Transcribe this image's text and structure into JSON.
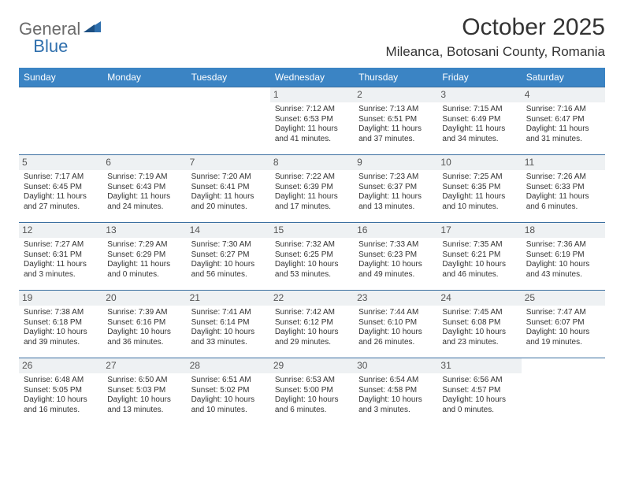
{
  "logo": {
    "part1": "General",
    "part2": "Blue"
  },
  "title": "October 2025",
  "location": "Mileanca, Botosani County, Romania",
  "colors": {
    "header_bg": "#3b84c4",
    "header_text": "#ffffff",
    "row_border": "#3b6fa0",
    "daynum_bg": "#eef1f3",
    "logo_gray": "#6b6b6b",
    "logo_blue": "#2f6fad"
  },
  "day_headers": [
    "Sunday",
    "Monday",
    "Tuesday",
    "Wednesday",
    "Thursday",
    "Friday",
    "Saturday"
  ],
  "weeks": [
    [
      {
        "n": "",
        "sr": "",
        "ss": "",
        "dl": ""
      },
      {
        "n": "",
        "sr": "",
        "ss": "",
        "dl": ""
      },
      {
        "n": "",
        "sr": "",
        "ss": "",
        "dl": ""
      },
      {
        "n": "1",
        "sr": "Sunrise: 7:12 AM",
        "ss": "Sunset: 6:53 PM",
        "dl": "Daylight: 11 hours and 41 minutes."
      },
      {
        "n": "2",
        "sr": "Sunrise: 7:13 AM",
        "ss": "Sunset: 6:51 PM",
        "dl": "Daylight: 11 hours and 37 minutes."
      },
      {
        "n": "3",
        "sr": "Sunrise: 7:15 AM",
        "ss": "Sunset: 6:49 PM",
        "dl": "Daylight: 11 hours and 34 minutes."
      },
      {
        "n": "4",
        "sr": "Sunrise: 7:16 AM",
        "ss": "Sunset: 6:47 PM",
        "dl": "Daylight: 11 hours and 31 minutes."
      }
    ],
    [
      {
        "n": "5",
        "sr": "Sunrise: 7:17 AM",
        "ss": "Sunset: 6:45 PM",
        "dl": "Daylight: 11 hours and 27 minutes."
      },
      {
        "n": "6",
        "sr": "Sunrise: 7:19 AM",
        "ss": "Sunset: 6:43 PM",
        "dl": "Daylight: 11 hours and 24 minutes."
      },
      {
        "n": "7",
        "sr": "Sunrise: 7:20 AM",
        "ss": "Sunset: 6:41 PM",
        "dl": "Daylight: 11 hours and 20 minutes."
      },
      {
        "n": "8",
        "sr": "Sunrise: 7:22 AM",
        "ss": "Sunset: 6:39 PM",
        "dl": "Daylight: 11 hours and 17 minutes."
      },
      {
        "n": "9",
        "sr": "Sunrise: 7:23 AM",
        "ss": "Sunset: 6:37 PM",
        "dl": "Daylight: 11 hours and 13 minutes."
      },
      {
        "n": "10",
        "sr": "Sunrise: 7:25 AM",
        "ss": "Sunset: 6:35 PM",
        "dl": "Daylight: 11 hours and 10 minutes."
      },
      {
        "n": "11",
        "sr": "Sunrise: 7:26 AM",
        "ss": "Sunset: 6:33 PM",
        "dl": "Daylight: 11 hours and 6 minutes."
      }
    ],
    [
      {
        "n": "12",
        "sr": "Sunrise: 7:27 AM",
        "ss": "Sunset: 6:31 PM",
        "dl": "Daylight: 11 hours and 3 minutes."
      },
      {
        "n": "13",
        "sr": "Sunrise: 7:29 AM",
        "ss": "Sunset: 6:29 PM",
        "dl": "Daylight: 11 hours and 0 minutes."
      },
      {
        "n": "14",
        "sr": "Sunrise: 7:30 AM",
        "ss": "Sunset: 6:27 PM",
        "dl": "Daylight: 10 hours and 56 minutes."
      },
      {
        "n": "15",
        "sr": "Sunrise: 7:32 AM",
        "ss": "Sunset: 6:25 PM",
        "dl": "Daylight: 10 hours and 53 minutes."
      },
      {
        "n": "16",
        "sr": "Sunrise: 7:33 AM",
        "ss": "Sunset: 6:23 PM",
        "dl": "Daylight: 10 hours and 49 minutes."
      },
      {
        "n": "17",
        "sr": "Sunrise: 7:35 AM",
        "ss": "Sunset: 6:21 PM",
        "dl": "Daylight: 10 hours and 46 minutes."
      },
      {
        "n": "18",
        "sr": "Sunrise: 7:36 AM",
        "ss": "Sunset: 6:19 PM",
        "dl": "Daylight: 10 hours and 43 minutes."
      }
    ],
    [
      {
        "n": "19",
        "sr": "Sunrise: 7:38 AM",
        "ss": "Sunset: 6:18 PM",
        "dl": "Daylight: 10 hours and 39 minutes."
      },
      {
        "n": "20",
        "sr": "Sunrise: 7:39 AM",
        "ss": "Sunset: 6:16 PM",
        "dl": "Daylight: 10 hours and 36 minutes."
      },
      {
        "n": "21",
        "sr": "Sunrise: 7:41 AM",
        "ss": "Sunset: 6:14 PM",
        "dl": "Daylight: 10 hours and 33 minutes."
      },
      {
        "n": "22",
        "sr": "Sunrise: 7:42 AM",
        "ss": "Sunset: 6:12 PM",
        "dl": "Daylight: 10 hours and 29 minutes."
      },
      {
        "n": "23",
        "sr": "Sunrise: 7:44 AM",
        "ss": "Sunset: 6:10 PM",
        "dl": "Daylight: 10 hours and 26 minutes."
      },
      {
        "n": "24",
        "sr": "Sunrise: 7:45 AM",
        "ss": "Sunset: 6:08 PM",
        "dl": "Daylight: 10 hours and 23 minutes."
      },
      {
        "n": "25",
        "sr": "Sunrise: 7:47 AM",
        "ss": "Sunset: 6:07 PM",
        "dl": "Daylight: 10 hours and 19 minutes."
      }
    ],
    [
      {
        "n": "26",
        "sr": "Sunrise: 6:48 AM",
        "ss": "Sunset: 5:05 PM",
        "dl": "Daylight: 10 hours and 16 minutes."
      },
      {
        "n": "27",
        "sr": "Sunrise: 6:50 AM",
        "ss": "Sunset: 5:03 PM",
        "dl": "Daylight: 10 hours and 13 minutes."
      },
      {
        "n": "28",
        "sr": "Sunrise: 6:51 AM",
        "ss": "Sunset: 5:02 PM",
        "dl": "Daylight: 10 hours and 10 minutes."
      },
      {
        "n": "29",
        "sr": "Sunrise: 6:53 AM",
        "ss": "Sunset: 5:00 PM",
        "dl": "Daylight: 10 hours and 6 minutes."
      },
      {
        "n": "30",
        "sr": "Sunrise: 6:54 AM",
        "ss": "Sunset: 4:58 PM",
        "dl": "Daylight: 10 hours and 3 minutes."
      },
      {
        "n": "31",
        "sr": "Sunrise: 6:56 AM",
        "ss": "Sunset: 4:57 PM",
        "dl": "Daylight: 10 hours and 0 minutes."
      },
      {
        "n": "",
        "sr": "",
        "ss": "",
        "dl": ""
      }
    ]
  ]
}
